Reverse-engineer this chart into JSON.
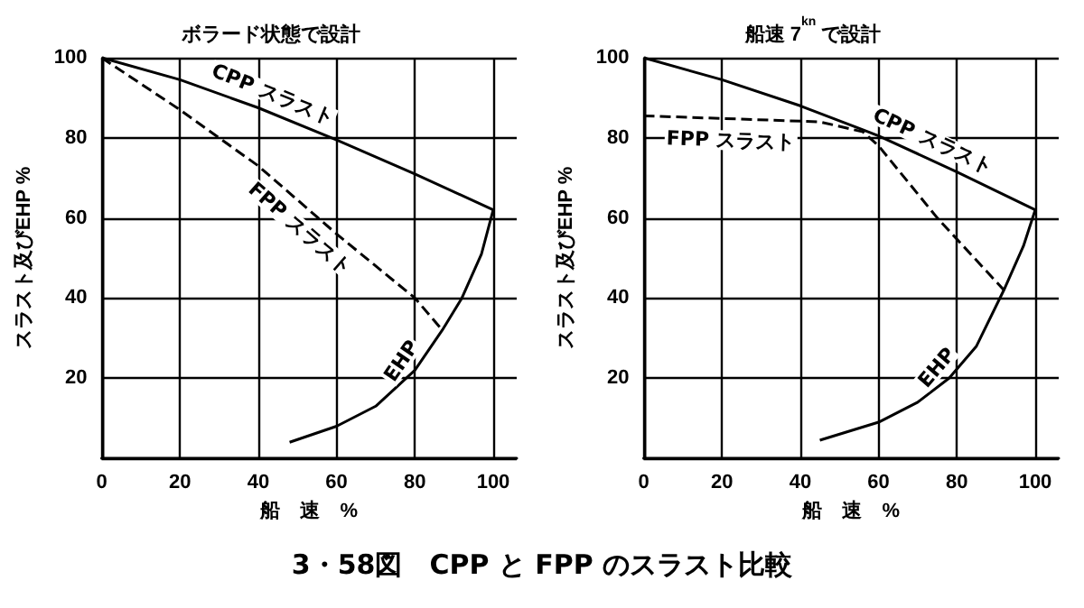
{
  "chart_data": [
    {
      "type": "line",
      "title": "ボラード状態で設計",
      "xlabel": "船　速　%",
      "ylabel": "スラスト及びEHP %",
      "annotations": [
        "3・58図　CPP と FPP のスラスト比較"
      ],
      "xlim": [
        0,
        106
      ],
      "xticks": [
        0,
        20,
        40,
        60,
        80,
        100
      ],
      "ylim": [
        0,
        100
      ],
      "yticks": [
        {
          "value": 0,
          "label": null
        },
        20,
        40,
        60,
        80,
        100
      ],
      "grid": true,
      "legend": false,
      "series": [
        {
          "name": "CPP スラスト",
          "color": "#000000",
          "line_style": "solid",
          "x": [
            0,
            20,
            40,
            60,
            80,
            100
          ],
          "values": [
            100,
            94.5,
            87.5,
            79.5,
            71,
            62
          ]
        },
        {
          "name": "FPP スラスト",
          "color": "#000000",
          "line_style": "dashed",
          "x": [
            0,
            20,
            40,
            60,
            80,
            87
          ],
          "values": [
            100,
            87,
            73,
            56,
            40,
            32
          ]
        },
        {
          "name": "EHP",
          "color": "#000000",
          "line_style": "solid",
          "x": [
            48,
            60,
            70,
            80,
            87,
            92,
            97,
            100
          ],
          "values": [
            4,
            8,
            13,
            22,
            32,
            40,
            51,
            62
          ]
        }
      ]
    },
    {
      "type": "line",
      "title": "船速 7$^{kn}$ で設計",
      "xlabel": "船　速　%",
      "ylabel": "スラスト及びEHP %",
      "xlim": [
        0,
        106
      ],
      "xticks": [
        0,
        20,
        40,
        60,
        80,
        100
      ],
      "ylim": [
        0,
        100
      ],
      "yticks": [
        {
          "value": 0,
          "label": null
        },
        20,
        40,
        60,
        80,
        100
      ],
      "grid": true,
      "legend": false,
      "series": [
        {
          "name": "CPP スラスト",
          "color": "#000000",
          "line_style": "solid",
          "x": [
            0,
            20,
            40,
            56,
            60,
            80,
            100
          ],
          "values": [
            100,
            94.5,
            88,
            82,
            80.5,
            71.5,
            62
          ]
        },
        {
          "name": "FPP スラスト",
          "color": "#000000",
          "line_style": "dashed",
          "x": [
            0,
            45,
            56,
            60,
            75,
            92
          ],
          "values": [
            85.5,
            84,
            81.5,
            78,
            60,
            42
          ]
        },
        {
          "name": "EHP",
          "color": "#000000",
          "line_style": "solid",
          "x": [
            45,
            60,
            70,
            78,
            85,
            92,
            97,
            100
          ],
          "values": [
            4.5,
            9,
            14,
            20,
            28,
            42,
            53,
            62
          ]
        }
      ]
    }
  ]
}
